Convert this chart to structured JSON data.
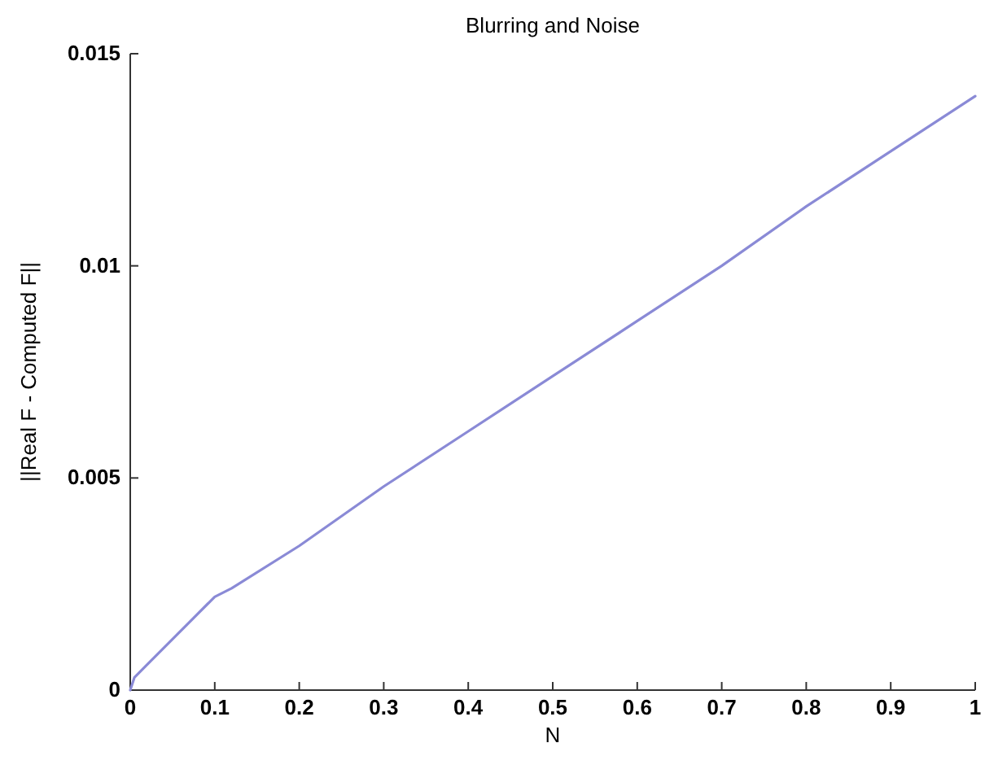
{
  "chart_data": {
    "type": "line",
    "title": "Blurring and Noise",
    "xlabel": "N",
    "ylabel": "||Real F - Computed F||",
    "x": [
      0,
      0.005,
      0.02,
      0.05,
      0.08,
      0.1,
      0.12,
      0.2,
      0.3,
      0.4,
      0.5,
      0.6,
      0.7,
      0.8,
      0.9,
      1
    ],
    "series": [
      {
        "color": "#8a8ad6",
        "values": [
          0,
          0.0003,
          0.0006,
          0.0012,
          0.0018,
          0.0022,
          0.0024,
          0.0034,
          0.0048,
          0.0061,
          0.0074,
          0.0087,
          0.01,
          0.0114,
          0.0127,
          0.014
        ]
      }
    ],
    "xlim": [
      0,
      1
    ],
    "xticks": [
      0,
      0.1,
      0.2,
      0.3,
      0.4,
      0.5,
      0.6,
      0.7,
      0.8,
      0.9,
      1
    ],
    "ylim": [
      0,
      0.015
    ],
    "yticks": [
      0,
      0.005,
      0.01,
      0.015
    ],
    "marker": "none",
    "line_style": "solid"
  }
}
